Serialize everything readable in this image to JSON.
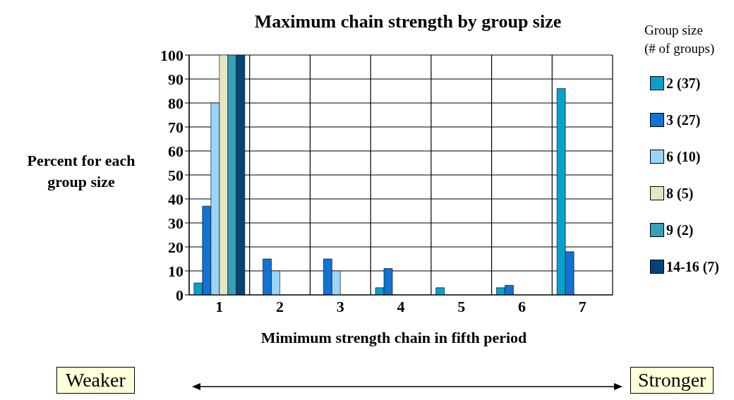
{
  "chart_data": {
    "type": "bar",
    "title": "Maximum chain strength by group size",
    "xlabel": "Mimimum strength chain in fifth period",
    "ylabel": "Percent for each group size",
    "legend_title": "Group size\n(# of groups)",
    "categories": [
      "1",
      "2",
      "3",
      "4",
      "5",
      "6",
      "7"
    ],
    "series": [
      {
        "name": "2 (37)",
        "color": "#0aa0cc",
        "values": [
          5,
          0,
          0,
          3,
          3,
          3,
          86
        ]
      },
      {
        "name": "3 (27)",
        "color": "#1173d4",
        "values": [
          37,
          15,
          15,
          11,
          0,
          4,
          18
        ]
      },
      {
        "name": "6 (10)",
        "color": "#99d4fa",
        "values": [
          80,
          10,
          10,
          0,
          0,
          0,
          0
        ]
      },
      {
        "name": "8 (5)",
        "color": "#e6e6c3",
        "values": [
          100,
          0,
          0,
          0,
          0,
          0,
          0
        ]
      },
      {
        "name": "9 (2)",
        "color": "#39a0b8",
        "values": [
          100,
          0,
          0,
          0,
          0,
          0,
          0
        ]
      },
      {
        "name": "14-16 (7)",
        "color": "#03457a",
        "values": [
          100,
          0,
          0,
          0,
          0,
          0,
          0
        ]
      }
    ],
    "ylim": [
      0,
      100
    ],
    "yticks": [
      0,
      10,
      20,
      30,
      40,
      50,
      60,
      70,
      80,
      90,
      100
    ],
    "grid": true,
    "legend": "right",
    "annotations": [
      "Weaker",
      "Stronger"
    ]
  }
}
